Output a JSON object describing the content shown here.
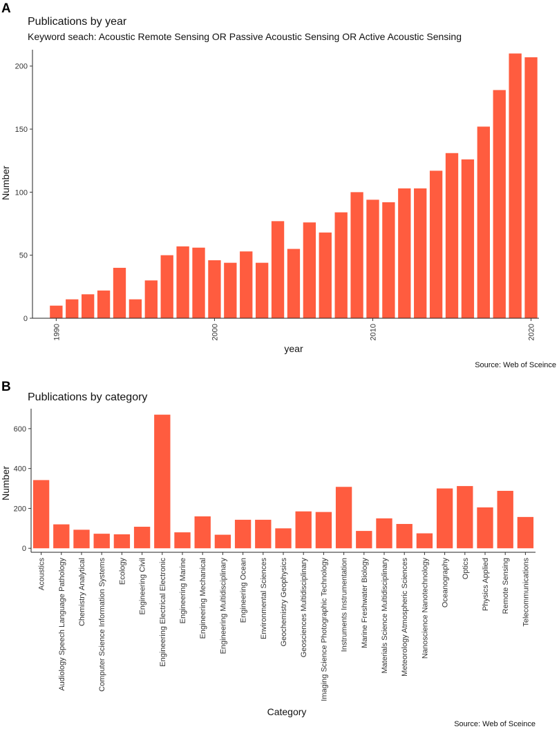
{
  "panels": {
    "a_letter": "A",
    "b_letter": "B"
  },
  "colors": {
    "bar": "#ff5c3f",
    "axis": "#222222"
  },
  "chart_data": [
    {
      "type": "bar",
      "title": "Publications by year",
      "subtitle": "Keyword seach: Acoustic Remote Sensing OR Passive Acoustic Sensing OR Active Acoustic Sensing",
      "xlabel": "year",
      "ylabel": "Number",
      "caption": "Source: Web of Sceince",
      "x": [
        1990,
        1991,
        1992,
        1993,
        1994,
        1995,
        1996,
        1997,
        1998,
        1999,
        2000,
        2001,
        2002,
        2003,
        2004,
        2005,
        2006,
        2007,
        2008,
        2009,
        2010,
        2011,
        2012,
        2013,
        2014,
        2015,
        2016,
        2017,
        2018,
        2019,
        2020
      ],
      "values": [
        10,
        15,
        19,
        22,
        40,
        15,
        30,
        50,
        57,
        56,
        46,
        44,
        53,
        44,
        77,
        55,
        76,
        68,
        84,
        100,
        94,
        92,
        103,
        103,
        117,
        131,
        126,
        152,
        181,
        210,
        207
      ],
      "xticks": [
        1990,
        2000,
        2010,
        2020
      ],
      "yticks": [
        0,
        50,
        100,
        150,
        200
      ],
      "ylim": [
        0,
        213
      ],
      "xlim": [
        1988.5,
        2020.5
      ],
      "grid": false
    },
    {
      "type": "bar",
      "title": "Publications by category",
      "xlabel": "Category",
      "ylabel": "Number",
      "caption": "Source: Web of Sceince",
      "categories": [
        "Acoustics",
        "Audiology Speech Language Pathology",
        "Chemistry Analytical",
        "Computer Science Information Systems",
        "Ecology",
        "Engineering Civil",
        "Engineering Electrical Electronic",
        "Engineering Marine",
        "Engineering Mechanical",
        "Engineering Multidisciplinary",
        "Engineering Ocean",
        "Environmental Sciences",
        "Geochemistry Geophysics",
        "Geosciences Multidisciplinary",
        "Imaging Science Photographic Technology",
        "Instruments Instrumentation",
        "Marine Freshwater Biology",
        "Materials Science Multidisciplinary",
        "Meteorology Atmospheric Sciences",
        "Nanoscience Nanotechnology",
        "Oceanography",
        "Optics",
        "Physics Applied",
        "Remote Sensing",
        "Telecommunications"
      ],
      "values": [
        342,
        120,
        93,
        73,
        70,
        108,
        670,
        80,
        160,
        68,
        143,
        143,
        100,
        185,
        182,
        308,
        87,
        150,
        122,
        75,
        300,
        312,
        205,
        288,
        157
      ],
      "yticks": [
        0,
        200,
        400,
        600
      ],
      "ylim": [
        -20,
        700
      ],
      "grid": false
    }
  ]
}
